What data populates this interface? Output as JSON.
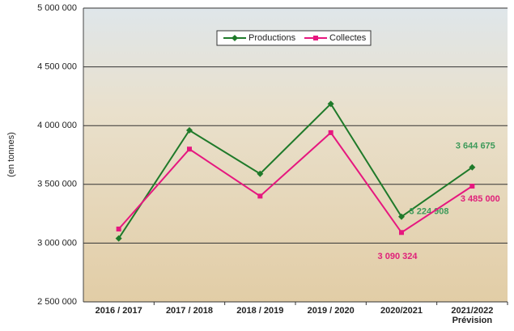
{
  "chart_data": {
    "type": "line",
    "y_label": "(en tonnes)",
    "categories": [
      "2016 / 2017",
      "2017 / 2018",
      "2018 / 2019",
      "2019 / 2020",
      "2020/2021",
      "2021/2022"
    ],
    "x_sublabels": [
      null,
      null,
      null,
      null,
      null,
      "Prévision"
    ],
    "series": [
      {
        "name": "Productions",
        "color": "#1f7a2a",
        "label_color": "#3e9a5a",
        "values": [
          3040000,
          3960000,
          3590000,
          4185000,
          3224908,
          3644675
        ],
        "value_labels": [
          null,
          null,
          null,
          null,
          "3 224 908",
          "3 644 675"
        ]
      },
      {
        "name": "Collectes",
        "color": "#e6177f",
        "label_color": "#e0207a",
        "values": [
          3120000,
          3800000,
          3400000,
          3940000,
          3090324,
          3485000
        ],
        "value_labels": [
          null,
          null,
          null,
          null,
          "3 090 324",
          "3 485 000"
        ]
      }
    ],
    "ylim": [
      2500000,
      5000000
    ],
    "yticks": [
      {
        "value": 2500000,
        "label": "2 500 000"
      },
      {
        "value": 3000000,
        "label": "3 000 000"
      },
      {
        "value": 3500000,
        "label": "3 500 000"
      },
      {
        "value": 4000000,
        "label": "4 000 000"
      },
      {
        "value": 4500000,
        "label": "4 500 000"
      },
      {
        "value": 5000000,
        "label": "5 000 000"
      }
    ],
    "grid": true,
    "legend": "top"
  }
}
